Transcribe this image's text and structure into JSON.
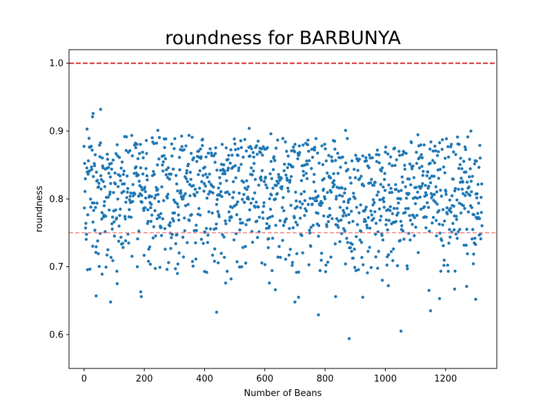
{
  "chart_data": {
    "type": "scatter",
    "title": "roundness for BARBUNYA",
    "xlabel": "Number of Beans",
    "ylabel": "roundness",
    "xlim": [
      -50,
      1370
    ],
    "ylim": [
      0.55,
      1.02
    ],
    "x_ticks": [
      0,
      200,
      400,
      600,
      800,
      1000,
      1200
    ],
    "y_ticks": [
      0.6,
      0.7,
      0.8,
      0.9,
      1.0
    ],
    "grid": false,
    "point_color": "#1f77b4",
    "reference_lines": [
      {
        "y": 1.0,
        "style": "dashed",
        "color": "#d62728"
      },
      {
        "y": 0.75,
        "style": "dashed",
        "color": "#f08080"
      }
    ],
    "point_count": 1322,
    "central_band": [
      0.75,
      0.87
    ],
    "outliers": [
      {
        "x": 10,
        "y": 0.903
      },
      {
        "x": 28,
        "y": 0.921
      },
      {
        "x": 30,
        "y": 0.926
      },
      {
        "x": 55,
        "y": 0.932
      },
      {
        "x": 40,
        "y": 0.657
      },
      {
        "x": 88,
        "y": 0.648
      },
      {
        "x": 60,
        "y": 0.689
      },
      {
        "x": 110,
        "y": 0.675
      },
      {
        "x": 188,
        "y": 0.663
      },
      {
        "x": 190,
        "y": 0.656
      },
      {
        "x": 245,
        "y": 0.901
      },
      {
        "x": 310,
        "y": 0.69
      },
      {
        "x": 440,
        "y": 0.633
      },
      {
        "x": 470,
        "y": 0.676
      },
      {
        "x": 488,
        "y": 0.682
      },
      {
        "x": 548,
        "y": 0.904
      },
      {
        "x": 620,
        "y": 0.896
      },
      {
        "x": 615,
        "y": 0.676
      },
      {
        "x": 635,
        "y": 0.666
      },
      {
        "x": 700,
        "y": 0.648
      },
      {
        "x": 712,
        "y": 0.655
      },
      {
        "x": 778,
        "y": 0.629
      },
      {
        "x": 880,
        "y": 0.594
      },
      {
        "x": 868,
        "y": 0.901
      },
      {
        "x": 925,
        "y": 0.655
      },
      {
        "x": 1052,
        "y": 0.605
      },
      {
        "x": 1150,
        "y": 0.635
      },
      {
        "x": 1180,
        "y": 0.653
      },
      {
        "x": 1230,
        "y": 0.667
      },
      {
        "x": 1300,
        "y": 0.652
      },
      {
        "x": 1270,
        "y": 0.671
      },
      {
        "x": 1145,
        "y": 0.665
      },
      {
        "x": 835,
        "y": 0.656
      },
      {
        "x": 990,
        "y": 0.68
      },
      {
        "x": 400,
        "y": 0.693
      },
      {
        "x": 1010,
        "y": 0.672
      }
    ]
  }
}
